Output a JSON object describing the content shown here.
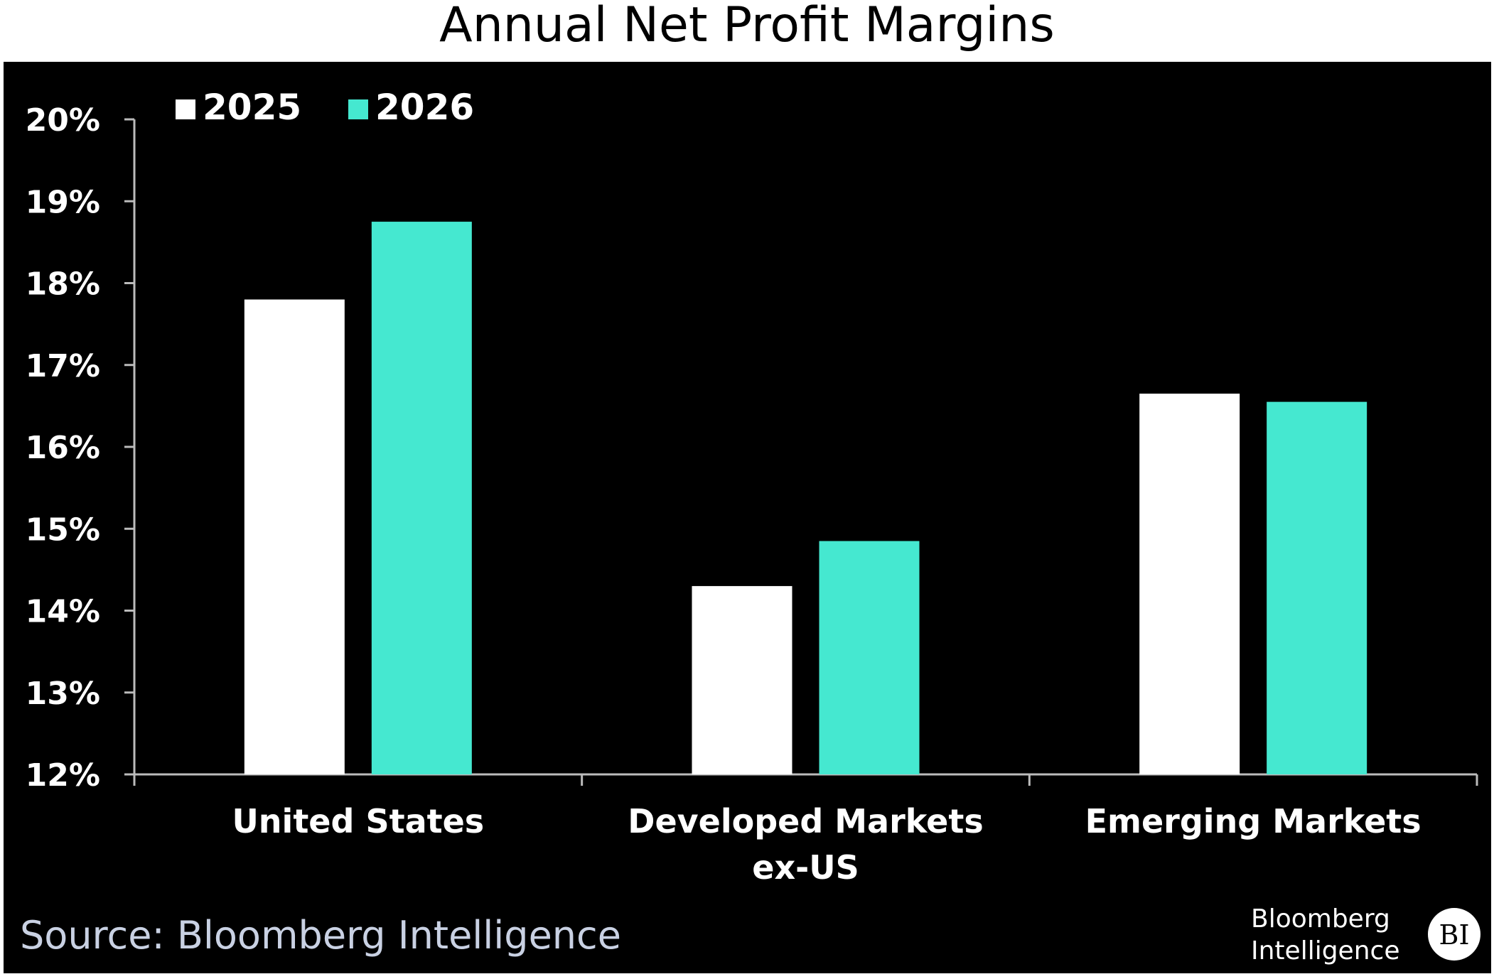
{
  "chart_data": {
    "type": "bar",
    "title": "Annual Net Profit Margins",
    "categories": [
      [
        "United States"
      ],
      [
        "Developed Markets",
        "ex-US"
      ],
      [
        "Emerging Markets"
      ]
    ],
    "series": [
      {
        "name": "2025",
        "color": "#ffffff",
        "values": [
          17.8,
          14.3,
          16.65
        ]
      },
      {
        "name": "2026",
        "color": "#45e8d0",
        "values": [
          18.75,
          14.85,
          16.55
        ]
      }
    ],
    "yticks": [
      "12%",
      "13%",
      "14%",
      "15%",
      "16%",
      "17%",
      "18%",
      "19%",
      "20%"
    ],
    "ylim": [
      12,
      20
    ],
    "xlabel": "",
    "ylabel": "",
    "legend_position": "top-left",
    "grid": false,
    "background": "#000000"
  },
  "source": "Source: Bloomberg Intelligence",
  "logo": {
    "line1": "Bloomberg",
    "line2": "Intelligence",
    "badge": "BI"
  }
}
